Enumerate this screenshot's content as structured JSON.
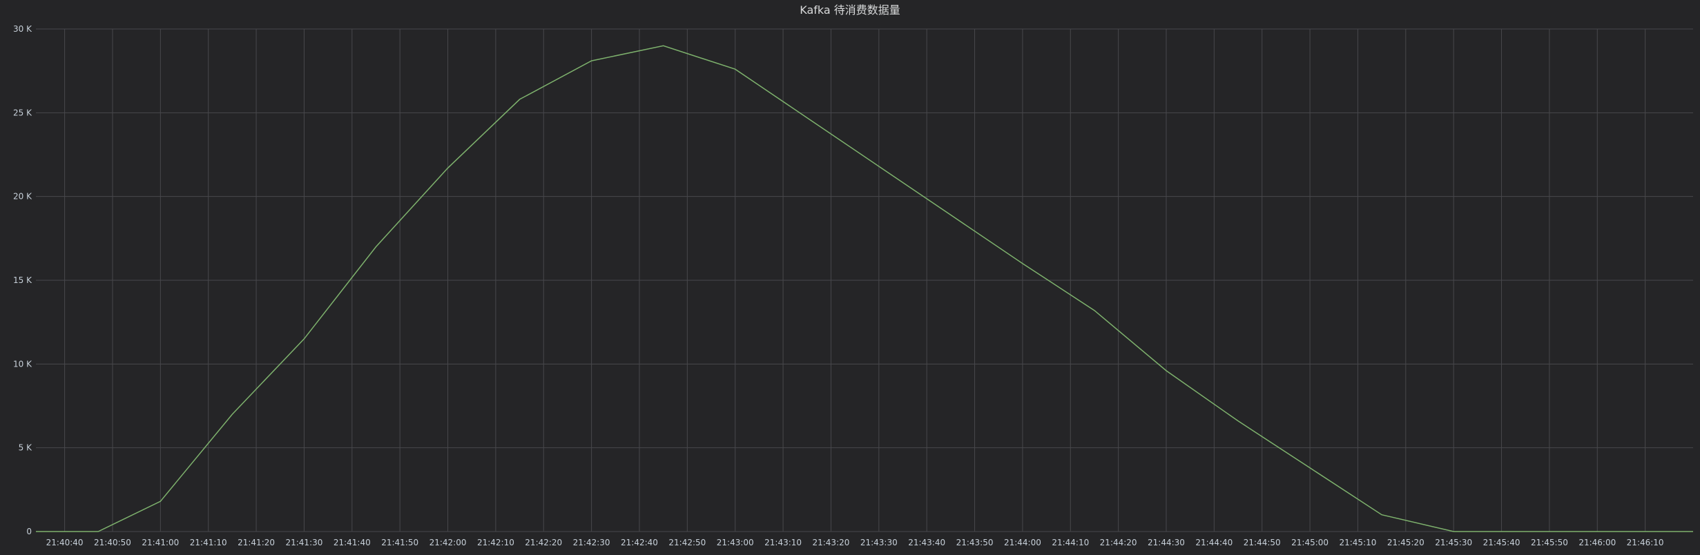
{
  "panel": {
    "title": "Kafka 待消费数据量"
  },
  "colors": {
    "background": "#252527",
    "grid": "#48484c",
    "text": "#c7d0d9",
    "series": "#7eb26d"
  },
  "chart_data": {
    "type": "line",
    "title": "Kafka 待消费数据量",
    "xlabel": "",
    "ylabel": "",
    "x_range": [
      "21:40:34",
      "21:46:20"
    ],
    "ylim": [
      0,
      30000
    ],
    "y_ticks": [
      0,
      5000,
      10000,
      15000,
      20000,
      25000,
      30000
    ],
    "y_tick_labels": [
      "0",
      "5 K",
      "10 K",
      "15 K",
      "20 K",
      "25 K",
      "30 K"
    ],
    "x_ticks": [
      "21:40:40",
      "21:40:50",
      "21:41:00",
      "21:41:10",
      "21:41:20",
      "21:41:30",
      "21:41:40",
      "21:41:50",
      "21:42:00",
      "21:42:10",
      "21:42:20",
      "21:42:30",
      "21:42:40",
      "21:42:50",
      "21:43:00",
      "21:43:10",
      "21:43:20",
      "21:43:30",
      "21:43:40",
      "21:43:50",
      "21:44:00",
      "21:44:10",
      "21:44:20",
      "21:44:30",
      "21:44:40",
      "21:44:50",
      "21:45:00",
      "21:45:10",
      "21:45:20",
      "21:45:30",
      "21:45:40",
      "21:45:50",
      "21:46:00",
      "21:46:10"
    ],
    "grid": true,
    "legend": "none",
    "series": [
      {
        "x": [
          "21:40:34",
          "21:40:47",
          "21:41:00",
          "21:41:15",
          "21:41:30",
          "21:41:45",
          "21:42:00",
          "21:42:15",
          "21:42:30",
          "21:42:45",
          "21:43:00",
          "21:43:15",
          "21:43:30",
          "21:43:45",
          "21:44:00",
          "21:44:15",
          "21:44:30",
          "21:44:45",
          "21:45:00",
          "21:45:15",
          "21:45:30",
          "21:45:45",
          "21:46:00",
          "21:46:20"
        ],
        "values": [
          0,
          0,
          1800,
          7000,
          11500,
          17000,
          21700,
          25800,
          28100,
          29000,
          27600,
          24700,
          21800,
          18900,
          16000,
          13200,
          9600,
          6600,
          3800,
          1000,
          0,
          0,
          0,
          0
        ]
      }
    ]
  }
}
